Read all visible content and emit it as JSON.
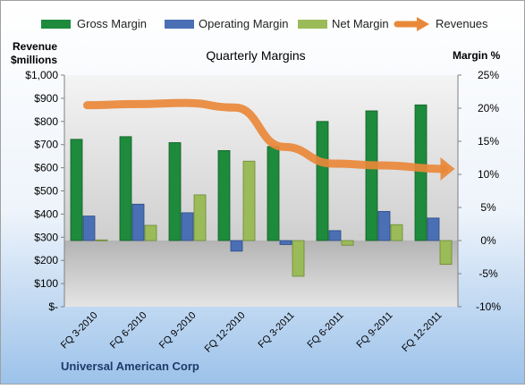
{
  "chart_data": {
    "type": "bar",
    "title": "Quarterly Margins",
    "company": "Universal American Corp",
    "left_axis_label_line1": "Revenue",
    "left_axis_label_line2": "$millions",
    "right_axis_label": "Margin %",
    "categories": [
      "FQ 3-2010",
      "FQ 6-2010",
      "FQ 9-2010",
      "FQ 12-2010",
      "FQ 3-2011",
      "FQ 6-2011",
      "FQ 9-2011",
      "FQ 12-2011"
    ],
    "left_ticks": [
      "$-",
      "$100",
      "$200",
      "$300",
      "$400",
      "$500",
      "$600",
      "$700",
      "$800",
      "$900",
      "$1,000"
    ],
    "right_ticks": [
      "-10%",
      "-5%",
      "0%",
      "5%",
      "10%",
      "15%",
      "20%",
      "25%"
    ],
    "left_ylim": [
      0,
      1000
    ],
    "right_ylim": [
      -10,
      25
    ],
    "series": [
      {
        "name": "Gross Margin",
        "axis": "right",
        "color": "#1e8a3c",
        "values": [
          15.3,
          15.7,
          14.8,
          13.6,
          14.2,
          18.0,
          19.6,
          20.5
        ]
      },
      {
        "name": "Operating Margin",
        "axis": "right",
        "color": "#4a6fb5",
        "values": [
          3.7,
          5.5,
          4.2,
          -1.6,
          -0.6,
          1.5,
          4.4,
          3.4
        ]
      },
      {
        "name": "Net Margin",
        "axis": "right",
        "color": "#9bbb59",
        "values": [
          0.1,
          2.3,
          6.9,
          12.0,
          -5.4,
          -0.7,
          2.4,
          -3.6
        ]
      },
      {
        "name": "Revenues",
        "axis": "left",
        "color": "#e9883a",
        "values": [
          870,
          875,
          880,
          860,
          690,
          618,
          610,
          595
        ]
      }
    ],
    "legend_position": "top",
    "grid": false
  }
}
